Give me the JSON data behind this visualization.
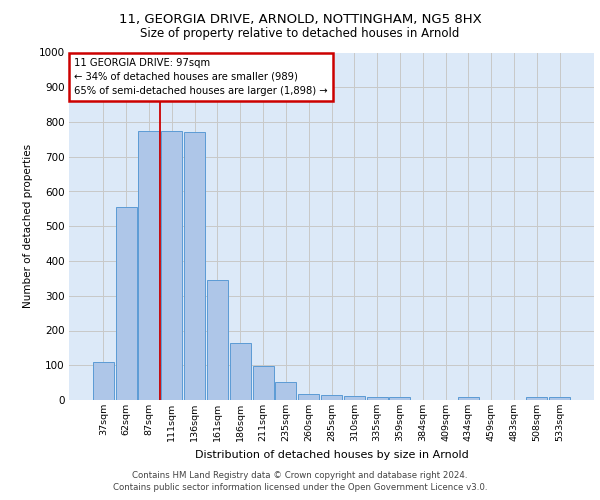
{
  "title_line1": "11, GEORGIA DRIVE, ARNOLD, NOTTINGHAM, NG5 8HX",
  "title_line2": "Size of property relative to detached houses in Arnold",
  "xlabel": "Distribution of detached houses by size in Arnold",
  "ylabel": "Number of detached properties",
  "footer_line1": "Contains HM Land Registry data © Crown copyright and database right 2024.",
  "footer_line2": "Contains public sector information licensed under the Open Government Licence v3.0.",
  "categories": [
    "37sqm",
    "62sqm",
    "87sqm",
    "111sqm",
    "136sqm",
    "161sqm",
    "186sqm",
    "211sqm",
    "235sqm",
    "260sqm",
    "285sqm",
    "310sqm",
    "335sqm",
    "359sqm",
    "384sqm",
    "409sqm",
    "434sqm",
    "459sqm",
    "483sqm",
    "508sqm",
    "533sqm"
  ],
  "values": [
    110,
    555,
    775,
    775,
    770,
    345,
    165,
    98,
    52,
    18,
    15,
    12,
    10,
    10,
    0,
    0,
    8,
    0,
    0,
    8,
    8
  ],
  "bar_color": "#aec6e8",
  "bar_edge_color": "#5b9bd5",
  "grid_color": "#c8c8c8",
  "vline_x": 2.5,
  "vline_color": "#cc0000",
  "annotation_text": "11 GEORGIA DRIVE: 97sqm\n← 34% of detached houses are smaller (989)\n65% of semi-detached houses are larger (1,898) →",
  "annotation_box_color": "#cc0000",
  "ylim": [
    0,
    1000
  ],
  "yticks": [
    0,
    100,
    200,
    300,
    400,
    500,
    600,
    700,
    800,
    900,
    1000
  ],
  "background_color": "#dce9f8",
  "fig_background_color": "#ffffff"
}
